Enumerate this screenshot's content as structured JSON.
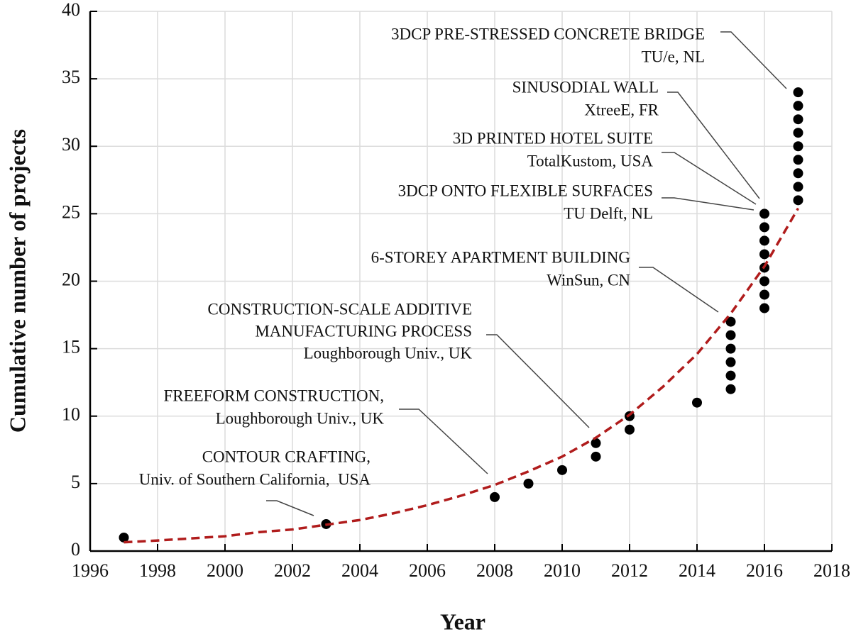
{
  "chart_data": {
    "type": "scatter",
    "x_label": "Year",
    "y_label": "Cumulative number of projects",
    "xlim": [
      1996,
      2018
    ],
    "xticks": [
      1996,
      1998,
      2000,
      2002,
      2004,
      2006,
      2008,
      2010,
      2012,
      2014,
      2016,
      2018
    ],
    "ylim": [
      0,
      40
    ],
    "yticks": [
      0,
      5,
      10,
      15,
      20,
      25,
      30,
      35,
      40
    ],
    "grid": true,
    "series": [
      {
        "type": "scatter",
        "color": "#000000",
        "x": [
          1997,
          2003,
          2008,
          2009,
          2010,
          2011,
          2011,
          2012,
          2012,
          2014,
          2015,
          2015,
          2015,
          2015,
          2015,
          2015,
          2016,
          2016,
          2016,
          2016,
          2016,
          2016,
          2016,
          2016,
          2017,
          2017,
          2017,
          2017,
          2017,
          2017,
          2017,
          2017,
          2017
        ],
        "values": [
          1,
          2,
          4,
          5,
          6,
          7,
          8,
          9,
          10,
          11,
          12,
          13,
          14,
          15,
          16,
          17,
          18,
          19,
          20,
          21,
          22,
          23,
          24,
          25,
          26,
          27,
          28,
          29,
          30,
          31,
          32,
          33,
          34
        ]
      },
      {
        "type": "line",
        "color": "#b01c1c",
        "dashed": true,
        "x": [
          1997,
          1998,
          1999,
          2000,
          2001,
          2002,
          2003,
          2004,
          2005,
          2006,
          2007,
          2008,
          2009,
          2010,
          2011,
          2012,
          2013,
          2014,
          2015,
          2016,
          2017
        ],
        "values": [
          0.65,
          0.78,
          0.94,
          1.1,
          1.4,
          1.6,
          1.95,
          2.3,
          2.8,
          3.4,
          4.1,
          4.9,
          5.9,
          7.0,
          8.4,
          10.1,
          12.2,
          14.6,
          17.6,
          21.1,
          25.4
        ]
      }
    ],
    "annotations": [
      {
        "lines": [
          "3DCP PRE-STRESSED CONCRETE BRIDGE",
          "TU/e, NL"
        ]
      },
      {
        "lines": [
          "SINUSODIAL WALL",
          "XtreeE, FR"
        ]
      },
      {
        "lines": [
          "3D PRINTED HOTEL SUITE",
          "TotalKustom, USA"
        ]
      },
      {
        "lines": [
          "3DCP ONTO FLEXIBLE SURFACES",
          "TU Delft, NL"
        ]
      },
      {
        "lines": [
          "6-STOREY APARTMENT BUILDING",
          "WinSun, CN"
        ]
      },
      {
        "lines": [
          "CONSTRUCTION-SCALE ADDITIVE",
          "MANUFACTURING PROCESS",
          "Loughborough Univ., UK"
        ]
      },
      {
        "lines": [
          "FREEFORM CONSTRUCTION,",
          "Loughborough Univ., UK"
        ]
      },
      {
        "lines": [
          "CONTOUR CRAFTING,",
          "Univ. of Southern California,  USA"
        ]
      }
    ]
  }
}
